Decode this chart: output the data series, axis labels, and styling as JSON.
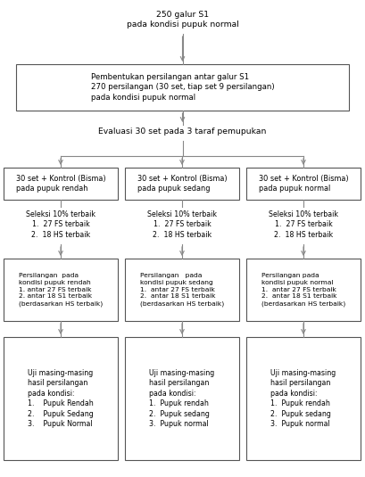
{
  "bg_color": "#ffffff",
  "box_edge_color": "#555555",
  "box_fill_color": "#ffffff",
  "line_color": "#888888",
  "text_color": "#000000",
  "font_size": 6.2,
  "box1_text": "250 galur S1\npada kondisi pupuk normal",
  "box2_text": "Pembentukan persilangan antar galur S1\n270 persilangan (30 set, tiap set 9 persilangan)\npada kondisi pupuk normal",
  "box3_text": "Evaluasi 30 set pada 3 taraf pemupukan",
  "box_left1_text": "30 set + Kontrol (Bisma)\npada pupuk rendah",
  "box_mid1_text": "30 set + Kontrol (Bisma)\npada pupuk sedang",
  "box_right1_text": "30 set + Kontrol (Bisma)\npada pupuk normal",
  "seleksi_left": "Seleksi 10% terbaik\n1.  27 FS terbaik\n2.  18 HS terbaik",
  "seleksi_mid": "Seleksi 10% terbaik\n1.  27 FS terbaik\n2.  18 HS terbaik",
  "seleksi_right": "Seleksi 10% terbaik\n1.  27 FS terbaik\n2.  18 HS terbaik",
  "persilangan_left": "Persilangan  pada\nkondisi pupuk rendah\n1. antar 27 FS terbaik\n2. antar 18 S1 terbaik\n(berdasarkan HS terbaik)",
  "persilangan_mid": "Persilangan   pada\nkondisi pupuk sedang\n1.  antar 27 FS terbaik\n2.  antar 18 S1 terbaik\n(berdasarkan HS terbaik)",
  "persilangan_right": "Persilangan pada\nkondisi pupuk normal\n1.  antar 27 FS terbaik\n2.  antar 18 S1 terbaik\n(berdasarkan HS terbaik)",
  "uji_left": "Uji masing-masing\nhasil persilangan\npada kondisi:\n1.    Pupuk Rendah\n2.    Pupuk Sedang\n3.    Pupuk Normal",
  "uji_mid": "Uji masing-masing\nhasil persilangan\npada kondisi:\n1.  Pupuk rendah\n2.  Pupuk sedang\n3.  Pupuk normal",
  "uji_right": "Uji masing-masing\nhasil persilangan\npada kondisi:\n1.  Pupuk rendah\n2.  Pupuk sedang\n3.  Pupuk normal"
}
